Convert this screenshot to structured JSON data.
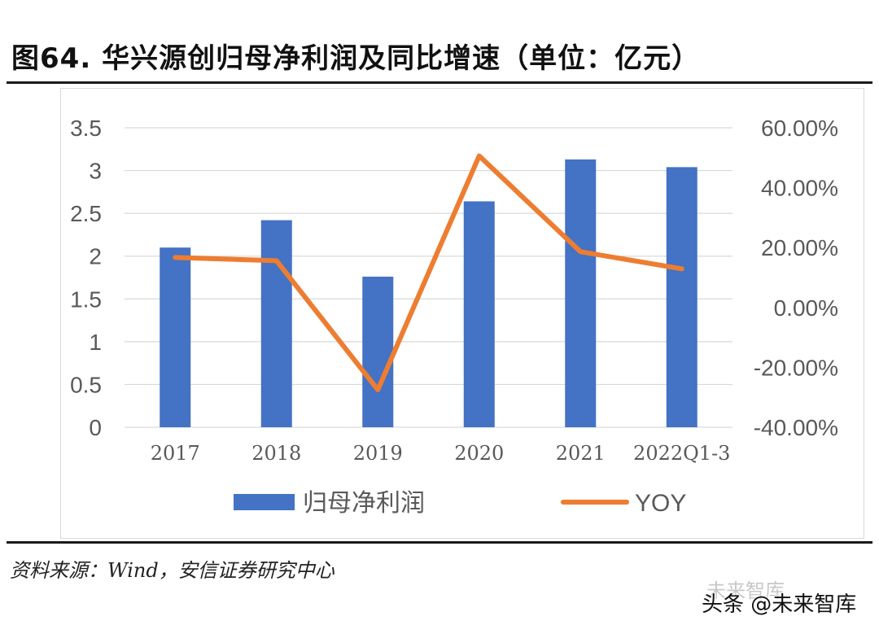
{
  "figure": {
    "title": "图64. 华兴源创归母净利润及同比增速（单位：亿元）",
    "source": "资料来源：Wind，安信证券研究中心",
    "watermark": "未来智库",
    "credit": "头条 @未来智库"
  },
  "chart_data": {
    "type": "bar+line",
    "categories": [
      "2017",
      "2018",
      "2019",
      "2020",
      "2021",
      "2022Q1-3"
    ],
    "series": [
      {
        "name": "归母净利润",
        "type": "bar",
        "axis": "left",
        "color": "#4472C4",
        "values": [
          2.1,
          2.42,
          1.76,
          2.64,
          3.13,
          3.04
        ]
      },
      {
        "name": "YOY",
        "type": "line",
        "axis": "right",
        "color": "#ED7D31",
        "values": [
          16.7,
          15.6,
          -27.5,
          50.6,
          18.6,
          12.9
        ]
      }
    ],
    "y_left": {
      "min": 0,
      "max": 3.5,
      "ticks": [
        0,
        0.5,
        1,
        1.5,
        2,
        2.5,
        3,
        3.5
      ],
      "tick_labels": [
        "0",
        "0.5",
        "1",
        "1.5",
        "2",
        "2.5",
        "3",
        "3.5"
      ]
    },
    "y_right": {
      "min": -40,
      "max": 60,
      "ticks": [
        -40,
        -20,
        0,
        20,
        40,
        60
      ],
      "tick_labels": [
        "-40.00%",
        "-20.00%",
        "0.00%",
        "20.00%",
        "40.00%",
        "60.00%"
      ]
    },
    "grid": true,
    "legend": {
      "position": "bottom",
      "entries": [
        "归母净利润",
        "YOY"
      ]
    }
  }
}
